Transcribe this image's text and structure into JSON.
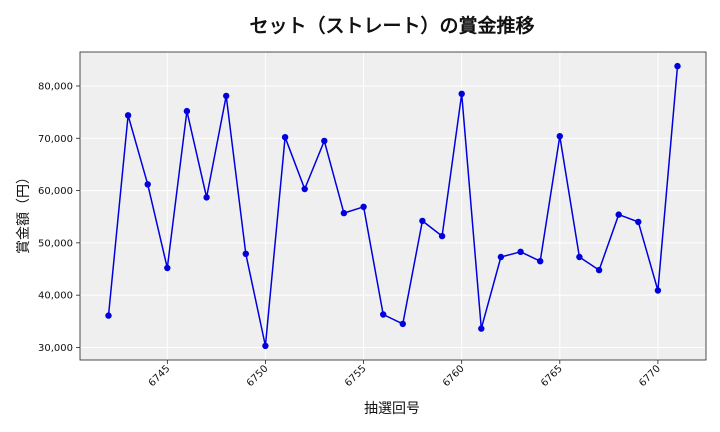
{
  "chart_data": {
    "type": "line",
    "title": "セット（ストレート）の賞金推移",
    "xlabel": "抽選回号",
    "ylabel": "賞金額（円）",
    "x": [
      6742,
      6743,
      6744,
      6745,
      6746,
      6747,
      6748,
      6749,
      6750,
      6751,
      6752,
      6753,
      6754,
      6755,
      6756,
      6757,
      6758,
      6759,
      6760,
      6761,
      6762,
      6763,
      6764,
      6765,
      6766,
      6767,
      6768,
      6769,
      6770,
      6771
    ],
    "series": [
      {
        "color": "#0000dd",
        "values": [
          36100,
          74400,
          61200,
          45200,
          75200,
          58700,
          78100,
          47900,
          30300,
          70200,
          60300,
          69500,
          55700,
          56900,
          36300,
          34500,
          54200,
          51300,
          78500,
          33600,
          47300,
          48300,
          46500,
          70400,
          47300,
          44800,
          55400,
          54000,
          40900,
          83800
        ]
      }
    ],
    "xticks": [
      "6745",
      "6750",
      "6755",
      "6760",
      "6765",
      "6770"
    ],
    "yticks": [
      "30,000",
      "40,000",
      "50,000",
      "60,000",
      "70,000",
      "80,000"
    ],
    "xlim": [
      6740.55,
      6772.45
    ],
    "ylim": [
      27600,
      86500
    ],
    "grid": true,
    "legend": "none",
    "background": "#efefef"
  }
}
